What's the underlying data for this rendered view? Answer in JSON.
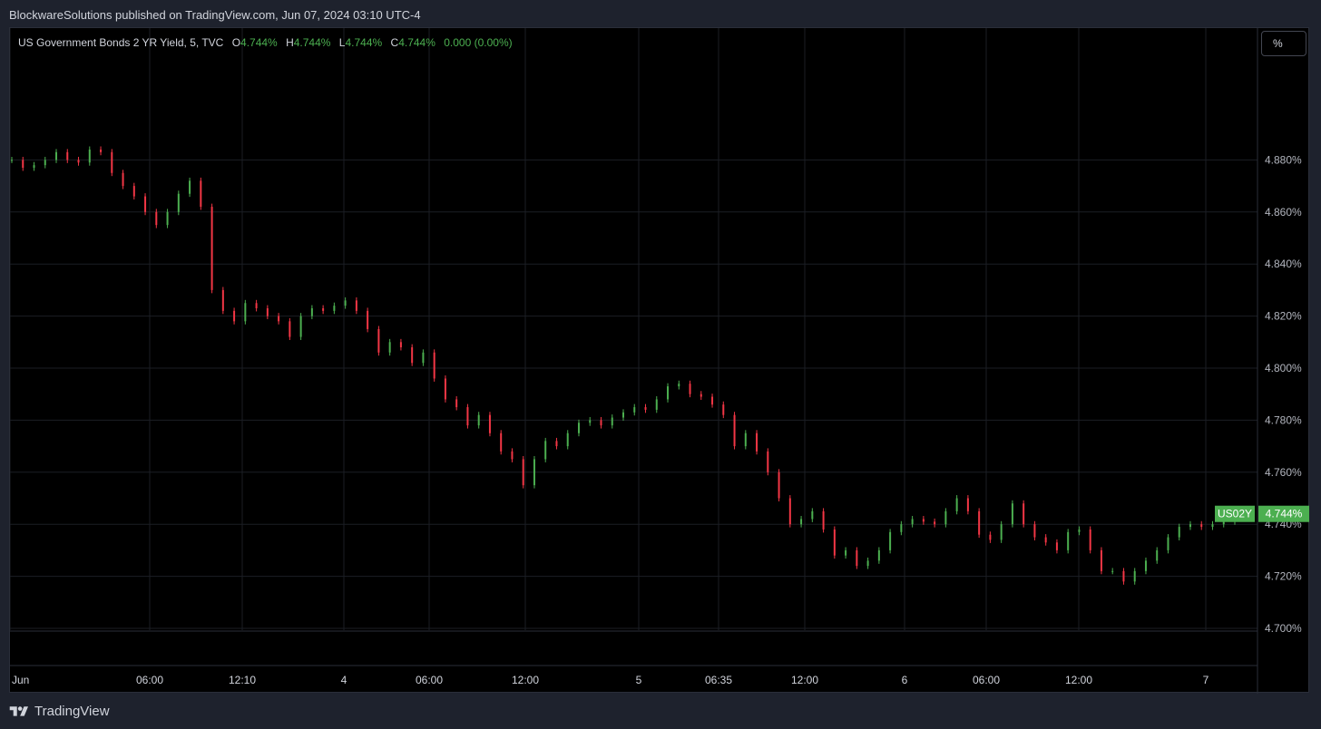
{
  "header": {
    "published_line": "BlockwareSolutions published on TradingView.com, Jun 07, 2024 03:10 UTC-4"
  },
  "legend": {
    "symbol": "US Government Bonds 2 YR Yield, 5, TVC",
    "open_label": "O",
    "open": "4.744%",
    "high_label": "H",
    "high": "4.744%",
    "low_label": "L",
    "low": "4.744%",
    "close_label": "C",
    "close": "4.744%",
    "change": "0.000 (0.00%)"
  },
  "scale_button": {
    "label": "%"
  },
  "price_tag": {
    "ticker": "US02Y",
    "value": "4.744%"
  },
  "footer": {
    "brand": "TradingView"
  },
  "colors": {
    "up": "#4caf50",
    "down": "#f23645",
    "background": "#000000",
    "grid": "#1b1e24",
    "tag": "#4caf50"
  },
  "chart_data": {
    "type": "candlestick",
    "title": "US Government Bonds 2 YR Yield, 5, TVC",
    "ylim": [
      4.7,
      4.9
    ],
    "y_ticks": [
      "4.880%",
      "4.860%",
      "4.840%",
      "4.820%",
      "4.800%",
      "4.780%",
      "4.760%",
      "4.740%",
      "4.720%",
      "4.700%"
    ],
    "x_ticks": [
      "Jun",
      "06:00",
      "12:10",
      "4",
      "06:00",
      "12:00",
      "5",
      "06:35",
      "12:00",
      "6",
      "06:00",
      "12:00",
      "7"
    ],
    "grid": true,
    "series": [
      {
        "name": "US02Y",
        "values": [
          {
            "t": 0,
            "c": 4.88
          },
          {
            "t": 2,
            "c": 4.877
          },
          {
            "t": 4,
            "c": 4.878
          },
          {
            "t": 6,
            "c": 4.88
          },
          {
            "t": 8,
            "c": 4.883
          },
          {
            "t": 10,
            "c": 4.88
          },
          {
            "t": 12,
            "c": 4.879
          },
          {
            "t": 14,
            "c": 4.884
          },
          {
            "t": 16,
            "c": 4.883
          },
          {
            "t": 18,
            "c": 4.875
          },
          {
            "t": 20,
            "c": 4.87
          },
          {
            "t": 22,
            "c": 4.866
          },
          {
            "t": 24,
            "c": 4.86
          },
          {
            "t": 26,
            "c": 4.855
          },
          {
            "t": 28,
            "c": 4.86
          },
          {
            "t": 30,
            "c": 4.867
          },
          {
            "t": 32,
            "c": 4.872
          },
          {
            "t": 34,
            "c": 4.862
          },
          {
            "t": 36,
            "c": 4.83
          },
          {
            "t": 38,
            "c": 4.822
          },
          {
            "t": 40,
            "c": 4.818
          },
          {
            "t": 42,
            "c": 4.825
          },
          {
            "t": 44,
            "c": 4.823
          },
          {
            "t": 46,
            "c": 4.82
          },
          {
            "t": 48,
            "c": 4.818
          },
          {
            "t": 50,
            "c": 4.812
          },
          {
            "t": 52,
            "c": 4.82
          },
          {
            "t": 54,
            "c": 4.823
          },
          {
            "t": 56,
            "c": 4.822
          },
          {
            "t": 58,
            "c": 4.824
          },
          {
            "t": 60,
            "c": 4.826
          },
          {
            "t": 62,
            "c": 4.822
          },
          {
            "t": 64,
            "c": 4.815
          },
          {
            "t": 66,
            "c": 4.806
          },
          {
            "t": 68,
            "c": 4.81
          },
          {
            "t": 70,
            "c": 4.808
          },
          {
            "t": 72,
            "c": 4.802
          },
          {
            "t": 74,
            "c": 4.806
          },
          {
            "t": 76,
            "c": 4.796
          },
          {
            "t": 78,
            "c": 4.788
          },
          {
            "t": 80,
            "c": 4.785
          },
          {
            "t": 82,
            "c": 4.778
          },
          {
            "t": 84,
            "c": 4.782
          },
          {
            "t": 86,
            "c": 4.775
          },
          {
            "t": 88,
            "c": 4.768
          },
          {
            "t": 90,
            "c": 4.765
          },
          {
            "t": 92,
            "c": 4.755
          },
          {
            "t": 94,
            "c": 4.765
          },
          {
            "t": 96,
            "c": 4.772
          },
          {
            "t": 98,
            "c": 4.77
          },
          {
            "t": 100,
            "c": 4.775
          },
          {
            "t": 102,
            "c": 4.779
          },
          {
            "t": 104,
            "c": 4.78
          },
          {
            "t": 106,
            "c": 4.778
          },
          {
            "t": 108,
            "c": 4.781
          },
          {
            "t": 110,
            "c": 4.783
          },
          {
            "t": 112,
            "c": 4.785
          },
          {
            "t": 114,
            "c": 4.784
          },
          {
            "t": 116,
            "c": 4.788
          },
          {
            "t": 118,
            "c": 4.793
          },
          {
            "t": 120,
            "c": 4.794
          },
          {
            "t": 122,
            "c": 4.79
          },
          {
            "t": 124,
            "c": 4.789
          },
          {
            "t": 126,
            "c": 4.786
          },
          {
            "t": 128,
            "c": 4.782
          },
          {
            "t": 130,
            "c": 4.77
          },
          {
            "t": 132,
            "c": 4.775
          },
          {
            "t": 134,
            "c": 4.768
          },
          {
            "t": 136,
            "c": 4.76
          },
          {
            "t": 138,
            "c": 4.75
          },
          {
            "t": 140,
            "c": 4.74
          },
          {
            "t": 142,
            "c": 4.742
          },
          {
            "t": 144,
            "c": 4.745
          },
          {
            "t": 146,
            "c": 4.738
          },
          {
            "t": 148,
            "c": 4.728
          },
          {
            "t": 150,
            "c": 4.73
          },
          {
            "t": 152,
            "c": 4.724
          },
          {
            "t": 154,
            "c": 4.726
          },
          {
            "t": 156,
            "c": 4.73
          },
          {
            "t": 158,
            "c": 4.737
          },
          {
            "t": 160,
            "c": 4.74
          },
          {
            "t": 162,
            "c": 4.742
          },
          {
            "t": 164,
            "c": 4.741
          },
          {
            "t": 166,
            "c": 4.74
          },
          {
            "t": 168,
            "c": 4.745
          },
          {
            "t": 170,
            "c": 4.75
          },
          {
            "t": 172,
            "c": 4.745
          },
          {
            "t": 174,
            "c": 4.736
          },
          {
            "t": 176,
            "c": 4.734
          },
          {
            "t": 178,
            "c": 4.74
          },
          {
            "t": 180,
            "c": 4.748
          },
          {
            "t": 182,
            "c": 4.74
          },
          {
            "t": 184,
            "c": 4.735
          },
          {
            "t": 186,
            "c": 4.733
          },
          {
            "t": 188,
            "c": 4.73
          },
          {
            "t": 190,
            "c": 4.737
          },
          {
            "t": 192,
            "c": 4.738
          },
          {
            "t": 194,
            "c": 4.73
          },
          {
            "t": 196,
            "c": 4.722
          },
          {
            "t": 198,
            "c": 4.722
          },
          {
            "t": 200,
            "c": 4.718
          },
          {
            "t": 202,
            "c": 4.722
          },
          {
            "t": 204,
            "c": 4.726
          },
          {
            "t": 206,
            "c": 4.73
          },
          {
            "t": 208,
            "c": 4.735
          },
          {
            "t": 210,
            "c": 4.739
          },
          {
            "t": 212,
            "c": 4.74
          },
          {
            "t": 214,
            "c": 4.739
          },
          {
            "t": 216,
            "c": 4.74
          },
          {
            "t": 218,
            "c": 4.741
          },
          {
            "t": 220,
            "c": 4.744
          }
        ]
      }
    ]
  }
}
